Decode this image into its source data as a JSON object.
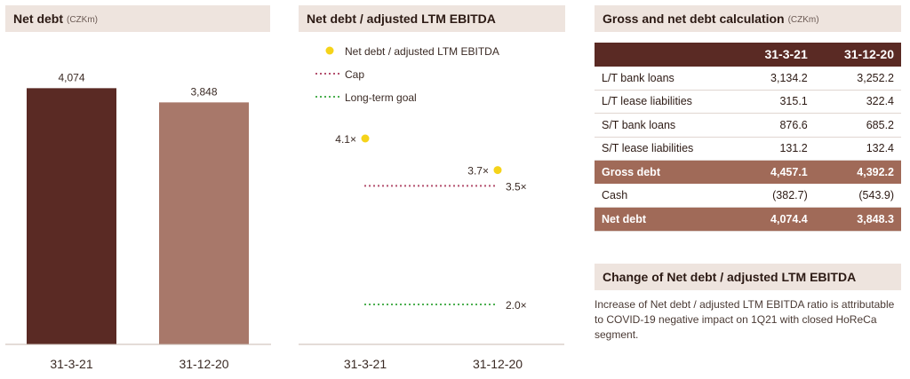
{
  "panel1": {
    "title": "Net debt",
    "unit": "(CZKm)"
  },
  "panel2": {
    "title": "Net debt / adjusted LTM EBITDA",
    "legend": [
      "Net debt / adjusted LTM EBITDA",
      "Cap",
      "Long-term goal"
    ]
  },
  "panel3": {
    "title": "Gross and net debt calculation",
    "unit": "(CZKm)",
    "columns": [
      "",
      "31-3-21",
      "31-12-20"
    ],
    "rows": [
      {
        "label": "L/T bank loans",
        "v1": "3,134.2",
        "v2": "3,252.2",
        "style": ""
      },
      {
        "label": "L/T lease liabilities",
        "v1": "315.1",
        "v2": "322.4",
        "style": ""
      },
      {
        "label": "S/T bank loans",
        "v1": "876.6",
        "v2": "685.2",
        "style": ""
      },
      {
        "label": "S/T lease liabilities",
        "v1": "131.2",
        "v2": "132.4",
        "style": ""
      },
      {
        "label": "Gross debt",
        "v1": "4,457.1",
        "v2": "4,392.2",
        "style": "hl"
      },
      {
        "label": "Cash",
        "v1": "(382.7)",
        "v2": "(543.9)",
        "style": ""
      },
      {
        "label": "Net debt",
        "v1": "4,074.4",
        "v2": "3,848.3",
        "style": "dk"
      }
    ]
  },
  "panel4": {
    "title": "Change of Net debt / adjusted LTM EBITDA",
    "text": "Increase of Net debt / adjusted LTM EBITDA ratio is attributable to COVID-19 negative impact on 1Q21 with closed HoReCa segment."
  },
  "colors": {
    "bar_dark": "#5a2a24",
    "bar_light": "#a8786a",
    "point": "#f5d31a",
    "cap": "#b4506e",
    "goal": "#4caf50"
  },
  "chart_data": [
    {
      "type": "bar",
      "categories": [
        "31-3-21",
        "31-12-20"
      ],
      "values": [
        4074,
        3848
      ],
      "labels": [
        "4,074",
        "3,848"
      ],
      "title": "Net debt",
      "ylim": [
        0,
        4700
      ]
    },
    {
      "type": "scatter",
      "categories": [
        "31-3-21",
        "31-12-20"
      ],
      "title": "Net debt / adjusted LTM EBITDA",
      "ylim": [
        1.4,
        4.6
      ],
      "series": [
        {
          "name": "Net debt / adjusted LTM EBITDA",
          "values": [
            4.1,
            3.7
          ],
          "labels": [
            "4.1×",
            "3.7×"
          ]
        },
        {
          "name": "Cap",
          "values": [
            3.5,
            3.5
          ],
          "end_label": "3.5×"
        },
        {
          "name": "Long-term goal",
          "values": [
            2.0,
            2.0
          ],
          "end_label": "2.0×"
        }
      ]
    }
  ]
}
